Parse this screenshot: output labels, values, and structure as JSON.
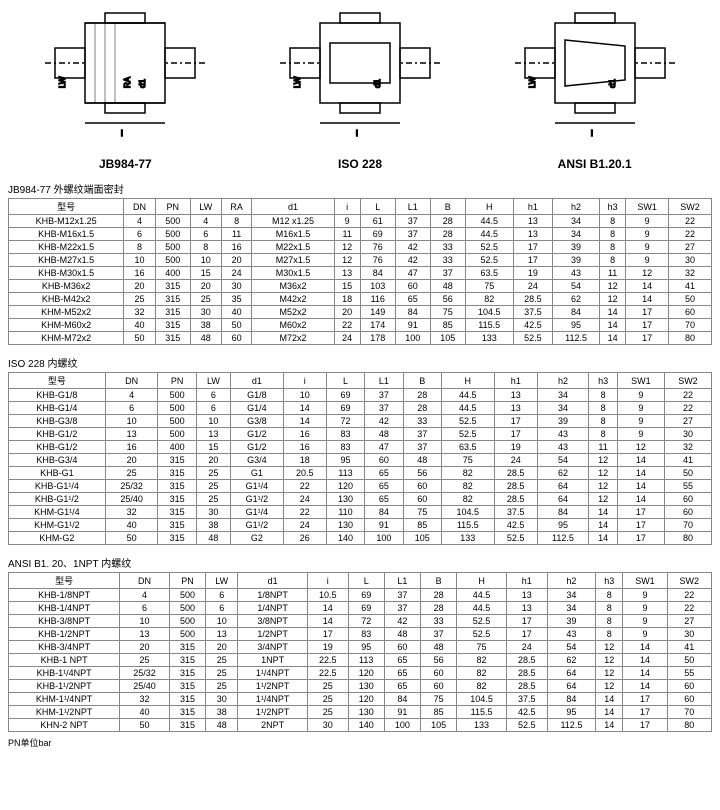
{
  "diagrams": [
    {
      "label": "JB984-77"
    },
    {
      "label": "ISO 228"
    },
    {
      "label": "ANSI B1.20.1"
    }
  ],
  "table1": {
    "title": "JB984-77 外螺纹端面密封",
    "columns": [
      "型号",
      "DN",
      "PN",
      "LW",
      "RA",
      "d1",
      "i",
      "L",
      "L1",
      "B",
      "H",
      "h1",
      "h2",
      "h3",
      "SW1",
      "SW2"
    ],
    "rows": [
      [
        "KHB-M12x1.25",
        "4",
        "500",
        "4",
        "8",
        "M12 x1.25",
        "9",
        "61",
        "37",
        "28",
        "44.5",
        "13",
        "34",
        "8",
        "9",
        "22"
      ],
      [
        "KHB-M16x1.5",
        "6",
        "500",
        "6",
        "11",
        "M16x1.5",
        "11",
        "69",
        "37",
        "28",
        "44.5",
        "13",
        "34",
        "8",
        "9",
        "22"
      ],
      [
        "KHB-M22x1.5",
        "8",
        "500",
        "8",
        "16",
        "M22x1.5",
        "12",
        "76",
        "42",
        "33",
        "52.5",
        "17",
        "39",
        "8",
        "9",
        "27"
      ],
      [
        "KHB-M27x1.5",
        "10",
        "500",
        "10",
        "20",
        "M27x1.5",
        "12",
        "76",
        "42",
        "33",
        "52.5",
        "17",
        "39",
        "8",
        "9",
        "30"
      ],
      [
        "KHB-M30x1.5",
        "16",
        "400",
        "15",
        "24",
        "M30x1.5",
        "13",
        "84",
        "47",
        "37",
        "63.5",
        "19",
        "43",
        "11",
        "12",
        "32"
      ],
      [
        "KHB-M36x2",
        "20",
        "315",
        "20",
        "30",
        "M36x2",
        "15",
        "103",
        "60",
        "48",
        "75",
        "24",
        "54",
        "12",
        "14",
        "41"
      ],
      [
        "KHB-M42x2",
        "25",
        "315",
        "25",
        "35",
        "M42x2",
        "18",
        "116",
        "65",
        "56",
        "82",
        "28.5",
        "62",
        "12",
        "14",
        "50"
      ],
      [
        "KHM-M52x2",
        "32",
        "315",
        "30",
        "40",
        "M52x2",
        "20",
        "149",
        "84",
        "75",
        "104.5",
        "37.5",
        "84",
        "14",
        "17",
        "60"
      ],
      [
        "KHM-M60x2",
        "40",
        "315",
        "38",
        "50",
        "M60x2",
        "22",
        "174",
        "91",
        "85",
        "115.5",
        "42.5",
        "95",
        "14",
        "17",
        "70"
      ],
      [
        "KHM-M72x2",
        "50",
        "315",
        "48",
        "60",
        "M72x2",
        "24",
        "178",
        "100",
        "105",
        "133",
        "52.5",
        "112.5",
        "14",
        "17",
        "80"
      ]
    ]
  },
  "table2": {
    "title": "ISO 228 内螺纹",
    "columns": [
      "型号",
      "DN",
      "PN",
      "LW",
      "d1",
      "i",
      "L",
      "L1",
      "B",
      "H",
      "h1",
      "h2",
      "h3",
      "SW1",
      "SW2"
    ],
    "rows": [
      [
        "KHB-G1/8",
        "4",
        "500",
        "6",
        "G1/8",
        "10",
        "69",
        "37",
        "28",
        "44.5",
        "13",
        "34",
        "8",
        "9",
        "22"
      ],
      [
        "KHB-G1/4",
        "6",
        "500",
        "6",
        "G1/4",
        "14",
        "69",
        "37",
        "28",
        "44.5",
        "13",
        "34",
        "8",
        "9",
        "22"
      ],
      [
        "KHB-G3/8",
        "10",
        "500",
        "10",
        "G3/8",
        "14",
        "72",
        "42",
        "33",
        "52.5",
        "17",
        "39",
        "8",
        "9",
        "27"
      ],
      [
        "KHB-G1/2",
        "13",
        "500",
        "13",
        "G1/2",
        "16",
        "83",
        "48",
        "37",
        "52.5",
        "17",
        "43",
        "8",
        "9",
        "30"
      ],
      [
        "KHB-G1/2",
        "16",
        "400",
        "15",
        "G1/2",
        "16",
        "83",
        "47",
        "37",
        "63.5",
        "19",
        "43",
        "11",
        "12",
        "32"
      ],
      [
        "KHB-G3/4",
        "20",
        "315",
        "20",
        "G3/4",
        "18",
        "95",
        "60",
        "48",
        "75",
        "24",
        "54",
        "12",
        "14",
        "41"
      ],
      [
        "KHB-G1",
        "25",
        "315",
        "25",
        "G1",
        "20.5",
        "113",
        "65",
        "56",
        "82",
        "28.5",
        "62",
        "12",
        "14",
        "50"
      ],
      [
        "KHB-G1¹/4",
        "25/32",
        "315",
        "25",
        "G1¹/4",
        "22",
        "120",
        "65",
        "60",
        "82",
        "28.5",
        "64",
        "12",
        "14",
        "55"
      ],
      [
        "KHB-G1¹/2",
        "25/40",
        "315",
        "25",
        "G1¹/2",
        "24",
        "130",
        "65",
        "60",
        "82",
        "28.5",
        "64",
        "12",
        "14",
        "60"
      ],
      [
        "KHM-G1¹/4",
        "32",
        "315",
        "30",
        "G1¹/4",
        "22",
        "110",
        "84",
        "75",
        "104.5",
        "37.5",
        "84",
        "14",
        "17",
        "60"
      ],
      [
        "KHM-G1¹/2",
        "40",
        "315",
        "38",
        "G1¹/2",
        "24",
        "130",
        "91",
        "85",
        "115.5",
        "42.5",
        "95",
        "14",
        "17",
        "70"
      ],
      [
        "KHM-G2",
        "50",
        "315",
        "48",
        "G2",
        "26",
        "140",
        "100",
        "105",
        "133",
        "52.5",
        "112.5",
        "14",
        "17",
        "80"
      ]
    ]
  },
  "table3": {
    "title": "ANSI B1. 20、1NPT 内螺纹",
    "columns": [
      "型号",
      "DN",
      "PN",
      "LW",
      "d1",
      "i",
      "L",
      "L1",
      "B",
      "H",
      "h1",
      "h2",
      "h3",
      "SW1",
      "SW2"
    ],
    "rows": [
      [
        "KHB-1/8NPT",
        "4",
        "500",
        "6",
        "1/8NPT",
        "10.5",
        "69",
        "37",
        "28",
        "44.5",
        "13",
        "34",
        "8",
        "9",
        "22"
      ],
      [
        "KHB-1/4NPT",
        "6",
        "500",
        "6",
        "1/4NPT",
        "14",
        "69",
        "37",
        "28",
        "44.5",
        "13",
        "34",
        "8",
        "9",
        "22"
      ],
      [
        "KHB-3/8NPT",
        "10",
        "500",
        "10",
        "3/8NPT",
        "14",
        "72",
        "42",
        "33",
        "52.5",
        "17",
        "39",
        "8",
        "9",
        "27"
      ],
      [
        "KHB-1/2NPT",
        "13",
        "500",
        "13",
        "1/2NPT",
        "17",
        "83",
        "48",
        "37",
        "52.5",
        "17",
        "43",
        "8",
        "9",
        "30"
      ],
      [
        "KHB-3/4NPT",
        "20",
        "315",
        "20",
        "3/4NPT",
        "19",
        "95",
        "60",
        "48",
        "75",
        "24",
        "54",
        "12",
        "14",
        "41"
      ],
      [
        "KHB-1 NPT",
        "25",
        "315",
        "25",
        "1NPT",
        "22.5",
        "113",
        "65",
        "56",
        "82",
        "28.5",
        "62",
        "12",
        "14",
        "50"
      ],
      [
        "KHB-1¹/4NPT",
        "25/32",
        "315",
        "25",
        "1¹/4NPT",
        "22.5",
        "120",
        "65",
        "60",
        "82",
        "28.5",
        "64",
        "12",
        "14",
        "55"
      ],
      [
        "KHB-1¹/2NPT",
        "25/40",
        "315",
        "25",
        "1¹/2NPT",
        "25",
        "130",
        "65",
        "60",
        "82",
        "28.5",
        "64",
        "12",
        "14",
        "60"
      ],
      [
        "KHM-1¹/4NPT",
        "32",
        "315",
        "30",
        "1¹/4NPT",
        "25",
        "120",
        "84",
        "75",
        "104.5",
        "37.5",
        "84",
        "14",
        "17",
        "60"
      ],
      [
        "KHM-1¹/2NPT",
        "40",
        "315",
        "38",
        "1¹/2NPT",
        "25",
        "130",
        "91",
        "85",
        "115.5",
        "42.5",
        "95",
        "14",
        "17",
        "70"
      ],
      [
        "KHN-2 NPT",
        "50",
        "315",
        "48",
        "2NPT",
        "30",
        "140",
        "100",
        "105",
        "133",
        "52.5",
        "112.5",
        "14",
        "17",
        "80"
      ]
    ]
  },
  "footnote": "PN单位bar"
}
